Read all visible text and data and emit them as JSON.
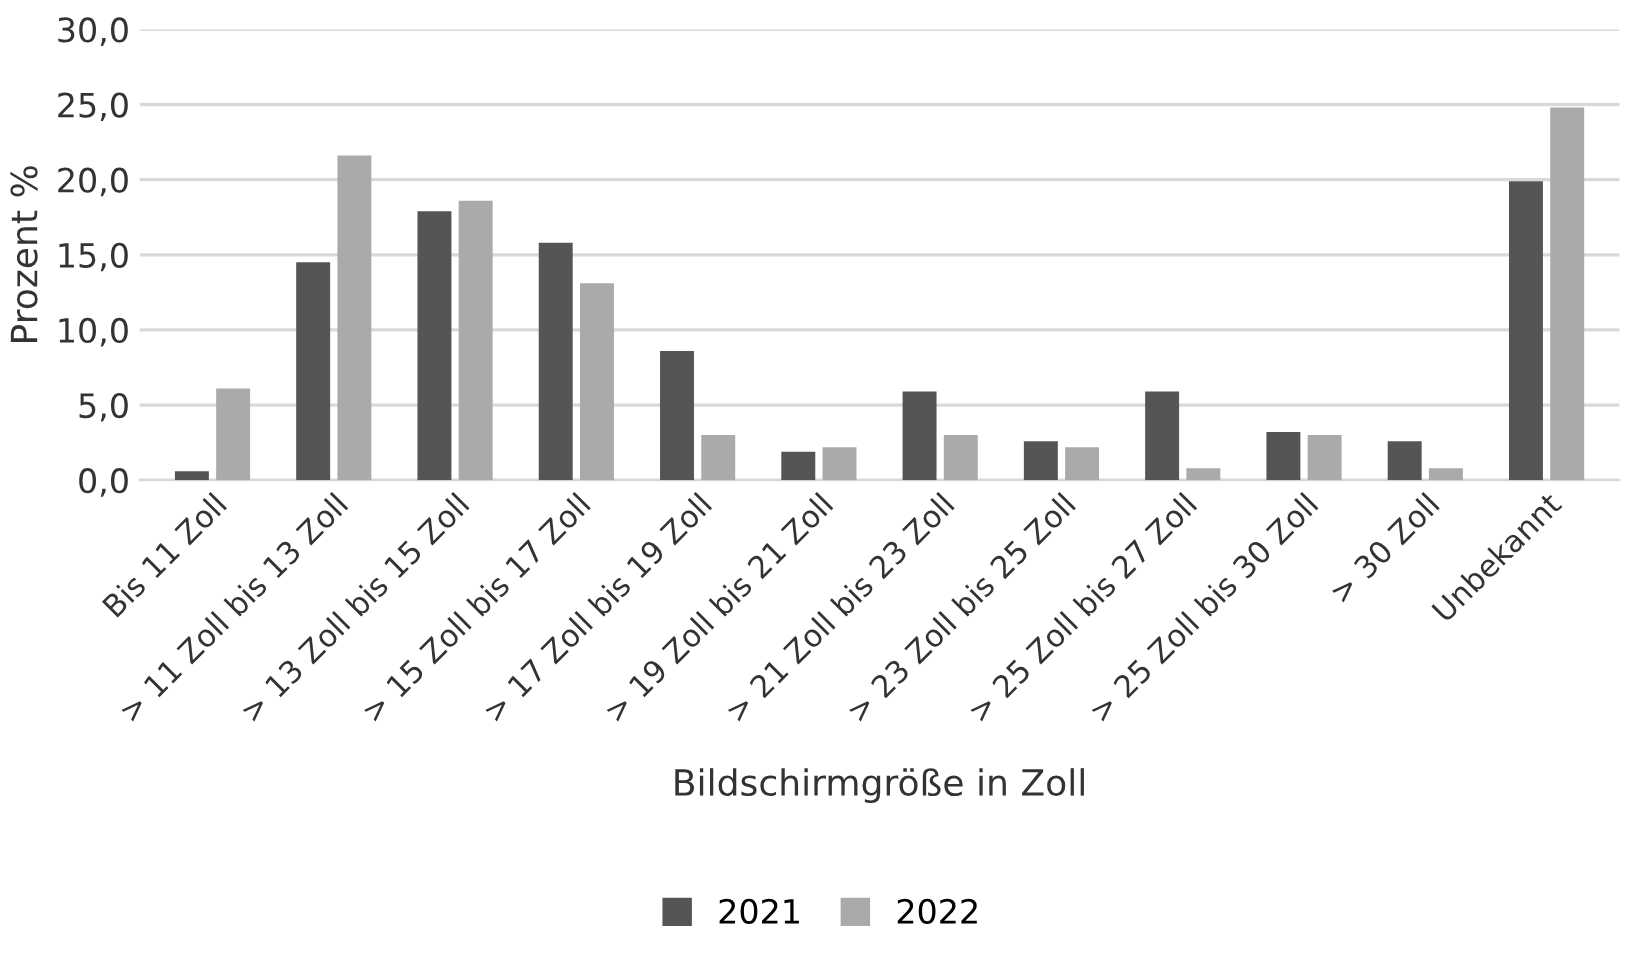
{
  "chart_data": {
    "type": "bar",
    "xlabel": "Bildschirmgröße in Zoll",
    "ylabel": "Prozent %",
    "categories": [
      "Bis 11 Zoll",
      "> 11 Zoll bis 13 Zoll",
      "> 13 Zoll bis 15 Zoll",
      "> 15 Zoll bis 17 Zoll",
      "> 17 Zoll bis 19 Zoll",
      "> 19 Zoll bis 21 Zoll",
      "> 21 Zoll bis 23 Zoll",
      "> 23 Zoll bis 25 Zoll",
      "> 25 Zoll bis 27 Zoll",
      "> 25 Zoll bis 30 Zoll",
      "> 30 Zoll",
      "Unbekannt"
    ],
    "series": [
      {
        "name": "2021",
        "color": "#555555",
        "values": [
          0.6,
          14.5,
          17.9,
          15.8,
          8.6,
          1.9,
          5.9,
          2.6,
          5.9,
          3.2,
          2.6,
          19.9
        ]
      },
      {
        "name": "2022",
        "color": "#aaaaaa",
        "values": [
          6.1,
          21.6,
          18.6,
          13.1,
          3.0,
          2.2,
          3.0,
          2.2,
          0.8,
          3.0,
          0.8,
          24.8
        ]
      }
    ],
    "ylim": [
      0,
      30
    ],
    "yticks": [
      {
        "value": 0,
        "label": "0,0"
      },
      {
        "value": 5,
        "label": "5,0"
      },
      {
        "value": 10,
        "label": "10,0"
      },
      {
        "value": 15,
        "label": "15,0"
      },
      {
        "value": 20,
        "label": "20,0"
      },
      {
        "value": 25,
        "label": "25,0"
      },
      {
        "value": 30,
        "label": "30,0"
      }
    ],
    "grid": "y",
    "legend": "bottom"
  }
}
